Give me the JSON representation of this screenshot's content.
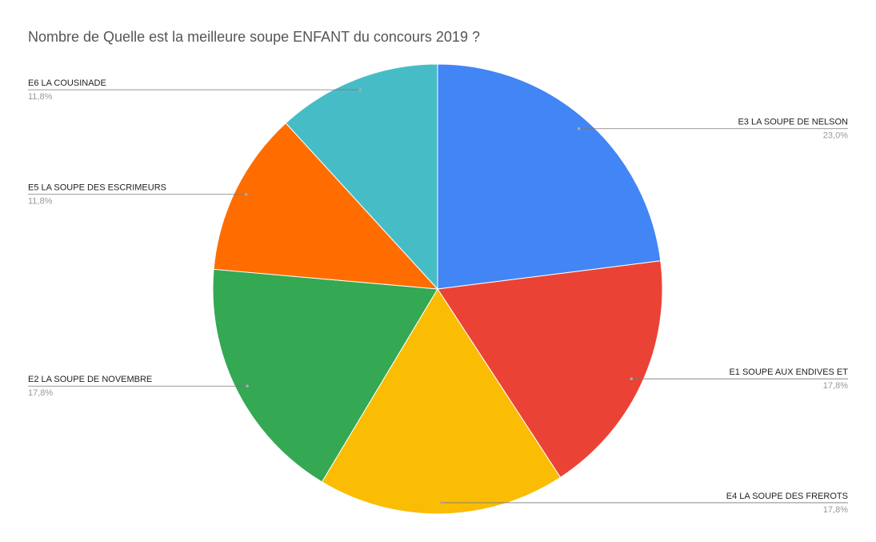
{
  "chart_data": {
    "type": "pie",
    "title": "Nombre de Quelle est la meilleure soupe ENFANT du concours 2019 ?",
    "categories": [
      "E3 LA SOUPE DE NELSON",
      "E1 SOUPE AUX ENDIVES ET",
      "E4 LA SOUPE DES FREROTS",
      "E2 LA SOUPE DE NOVEMBRE",
      "E5 LA SOUPE DES ESCRIMEURS",
      "E6 LA COUSINADE"
    ],
    "values": [
      23.0,
      17.8,
      17.8,
      17.8,
      11.8,
      11.8
    ],
    "value_labels": [
      "23,0%",
      "17,8%",
      "17,8%",
      "17,8%",
      "11,8%",
      "11,8%"
    ],
    "colors": [
      "#4285f4",
      "#ea4335",
      "#fbbc04",
      "#34a853",
      "#ff6d01",
      "#46bdc6"
    ]
  }
}
